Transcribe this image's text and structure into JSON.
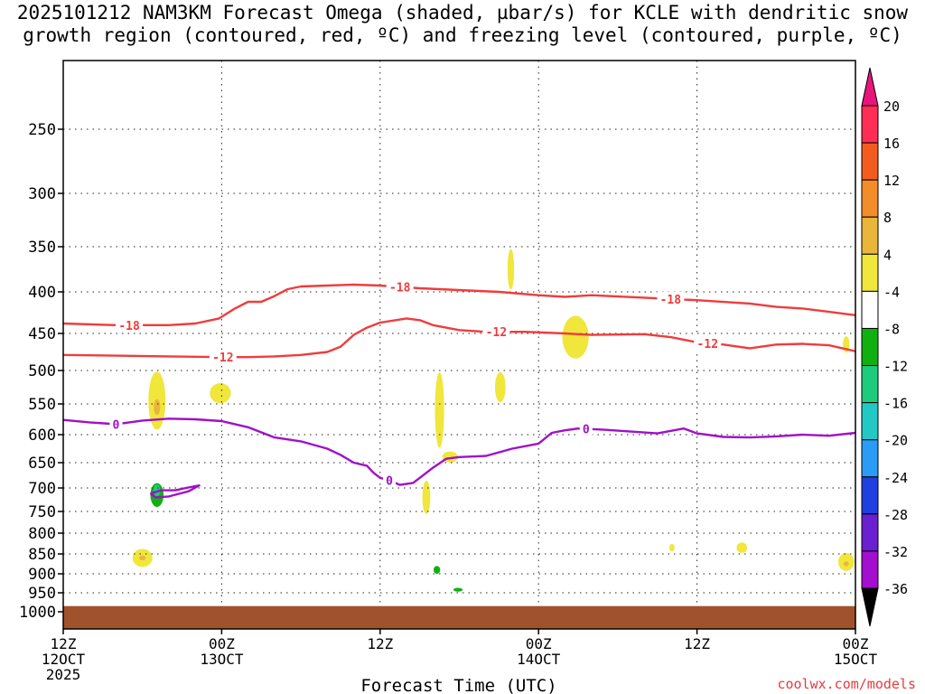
{
  "chart_data": {
    "type": "contour",
    "title_line1": "2025101212 NAM3KM Forecast Omega (shaded, µbar/s) for KCLE with dendritic snow",
    "title_line2": "growth region (contoured, red, ºC) and freezing level (contoured, purple, ºC)",
    "xlabel": "Forecast Time (UTC)",
    "watermark": "coolwx.com/models",
    "x_ticks": [
      {
        "hour": 0,
        "label": "12Z",
        "sub": "12OCT",
        "sub2": "2025"
      },
      {
        "hour": 12,
        "label": "00Z",
        "sub": "13OCT",
        "sub2": ""
      },
      {
        "hour": 24,
        "label": "12Z",
        "sub": "",
        "sub2": ""
      },
      {
        "hour": 36,
        "label": "00Z",
        "sub": "14OCT",
        "sub2": ""
      },
      {
        "hour": 48,
        "label": "12Z",
        "sub": "",
        "sub2": ""
      },
      {
        "hour": 60,
        "label": "00Z",
        "sub": "15OCT",
        "sub2": ""
      }
    ],
    "x_range_hours": [
      0,
      60
    ],
    "y_levels_hpa": [
      250,
      300,
      350,
      400,
      450,
      500,
      550,
      600,
      650,
      700,
      750,
      800,
      850,
      900,
      950,
      1000
    ],
    "y_range_hpa": [
      200,
      1025
    ],
    "ground_level_hpa": 985,
    "colorbar_levels": [
      "20",
      "16",
      "12",
      "8",
      "4",
      "-4",
      "-8",
      "-12",
      "-16",
      "-20",
      "-24",
      "-28",
      "-32",
      "-36"
    ],
    "colorbar_colors": [
      "#ff2e55",
      "#f25c1e",
      "#f28d29",
      "#e8b63a",
      "#f0e63c",
      "#ffffff",
      "#11b011",
      "#1dcc7a",
      "#22c9c4",
      "#2a9cf5",
      "#1f3fe0",
      "#6a1fd0",
      "#a30ecf",
      "#a8a8a8"
    ],
    "colorbar_top_color": "#e8157a",
    "colorbar_bottom_color": "#000000",
    "ground_color": "#a0522d",
    "dgz_color": "#f03c3c",
    "freezing_color": "#a010c8",
    "contours": [
      {
        "name": "dgz-18",
        "label": "-18",
        "label_hour": 12.5,
        "points": [
          [
            0,
            438
          ],
          [
            4,
            440
          ],
          [
            8,
            440
          ],
          [
            10,
            438
          ],
          [
            11.8,
            432
          ],
          [
            13,
            420
          ],
          [
            14,
            412
          ],
          [
            15,
            412
          ],
          [
            16,
            405
          ],
          [
            17,
            397
          ],
          [
            18,
            394
          ],
          [
            20,
            393
          ],
          [
            22,
            392
          ],
          [
            24,
            393
          ],
          [
            27,
            396
          ],
          [
            30,
            398
          ],
          [
            33,
            400
          ],
          [
            36,
            404
          ],
          [
            38,
            406
          ],
          [
            40,
            404
          ],
          [
            44,
            407
          ],
          [
            48,
            410
          ],
          [
            52,
            414
          ],
          [
            54,
            418
          ],
          [
            56,
            420
          ],
          [
            58,
            424
          ],
          [
            60,
            428
          ]
        ],
        "label_hours": [
          5,
          25.5,
          46
        ]
      },
      {
        "name": "dgz-12",
        "label": "-12",
        "label_hour": 12.5,
        "points": [
          [
            0,
            479
          ],
          [
            4,
            480
          ],
          [
            8,
            481
          ],
          [
            12,
            482
          ],
          [
            14,
            482
          ],
          [
            16,
            481
          ],
          [
            18,
            479
          ],
          [
            20,
            475
          ],
          [
            21,
            468
          ],
          [
            22,
            452
          ],
          [
            23,
            443
          ],
          [
            24,
            437
          ],
          [
            26,
            432
          ],
          [
            27,
            434
          ],
          [
            28,
            440
          ],
          [
            30,
            446
          ],
          [
            32,
            448
          ],
          [
            35,
            448
          ],
          [
            38,
            450
          ],
          [
            40,
            452
          ],
          [
            44,
            451
          ],
          [
            46,
            455
          ],
          [
            48,
            462
          ],
          [
            50,
            465
          ],
          [
            52,
            470
          ],
          [
            54,
            465
          ],
          [
            56,
            464
          ],
          [
            58,
            466
          ],
          [
            60,
            474
          ]
        ],
        "label_hours": [
          12.1,
          32.8,
          48.8
        ]
      },
      {
        "name": "freezing-0",
        "label": "0",
        "points": [
          [
            0,
            576
          ],
          [
            2,
            580
          ],
          [
            4,
            583
          ],
          [
            6,
            577
          ],
          [
            8,
            574
          ],
          [
            10,
            575
          ],
          [
            12,
            578
          ],
          [
            14,
            588
          ],
          [
            16,
            605
          ],
          [
            18,
            612
          ],
          [
            20,
            625
          ],
          [
            21,
            636
          ],
          [
            22,
            650
          ],
          [
            23,
            656
          ],
          [
            23.5,
            670
          ],
          [
            24,
            680
          ],
          [
            24.6,
            684
          ],
          [
            25.5,
            694
          ],
          [
            26.5,
            690
          ],
          [
            27,
            680
          ],
          [
            28,
            660
          ],
          [
            29,
            643
          ],
          [
            30,
            640
          ],
          [
            32,
            638
          ],
          [
            34,
            625
          ],
          [
            36,
            616
          ],
          [
            37,
            597
          ],
          [
            38,
            593
          ],
          [
            39,
            590
          ],
          [
            41,
            592
          ],
          [
            43,
            595
          ],
          [
            45,
            598
          ],
          [
            47,
            590
          ],
          [
            48,
            598
          ],
          [
            50,
            604
          ],
          [
            52,
            605
          ],
          [
            54,
            603
          ],
          [
            56,
            600
          ],
          [
            58,
            602
          ],
          [
            60,
            597
          ]
        ],
        "label_hours": [
          4,
          24.7,
          39.6
        ]
      },
      {
        "name": "freezing-0-island",
        "label": "",
        "points": [
          [
            6.6,
            712
          ],
          [
            7.4,
            705
          ],
          [
            8.5,
            705
          ],
          [
            9.3,
            700
          ],
          [
            10.3,
            695
          ],
          [
            9.5,
            707
          ],
          [
            8,
            718
          ],
          [
            7,
            720
          ],
          [
            6.6,
            712
          ]
        ],
        "label_hours": []
      }
    ],
    "omega_blobs": [
      {
        "name": "rise-1",
        "value": 4,
        "h": 7.1,
        "p": 545,
        "dh": 0.65,
        "dp": 90
      },
      {
        "name": "rise-1-core",
        "value": 8,
        "h": 7.1,
        "p": 555,
        "dh": 0.25,
        "dp": 25
      },
      {
        "name": "rise-2",
        "value": 4,
        "h": 11.9,
        "p": 534,
        "dh": 0.8,
        "dp": 30
      },
      {
        "name": "rise-3",
        "value": 4,
        "h": 6.0,
        "p": 860,
        "dh": 0.75,
        "dp": 45
      },
      {
        "name": "rise-3-core",
        "value": 8,
        "h": 6.0,
        "p": 860,
        "dh": 0.25,
        "dp": 12
      },
      {
        "name": "rise-4",
        "value": 4,
        "h": 28.5,
        "p": 560,
        "dh": 0.35,
        "dp": 120
      },
      {
        "name": "rise-5",
        "value": 4,
        "h": 27.5,
        "p": 720,
        "dh": 0.3,
        "dp": 70
      },
      {
        "name": "rise-6",
        "value": 4,
        "h": 29.3,
        "p": 640,
        "dh": 0.6,
        "dp": 20
      },
      {
        "name": "rise-7",
        "value": 4,
        "h": 33.1,
        "p": 525,
        "dh": 0.4,
        "dp": 45
      },
      {
        "name": "rise-8",
        "value": 4,
        "h": 33.9,
        "p": 375,
        "dh": 0.25,
        "dp": 45
      },
      {
        "name": "rise-9",
        "value": 4,
        "h": 38.8,
        "p": 455,
        "dh": 1.0,
        "dp": 55
      },
      {
        "name": "rise-10",
        "value": 4,
        "h": 46.1,
        "p": 835,
        "dh": 0.2,
        "dp": 18
      },
      {
        "name": "rise-11",
        "value": 4,
        "h": 51.4,
        "p": 835,
        "dh": 0.4,
        "dp": 25
      },
      {
        "name": "rise-12",
        "value": 4,
        "h": 59.3,
        "p": 465,
        "dh": 0.25,
        "dp": 22
      },
      {
        "name": "rise-13",
        "value": 4,
        "h": 59.3,
        "p": 870,
        "dh": 0.6,
        "dp": 45
      },
      {
        "name": "rise-13-core",
        "value": 8,
        "h": 59.3,
        "p": 875,
        "dh": 0.2,
        "dp": 12
      },
      {
        "name": "sink-1",
        "value": -4,
        "h": 7.1,
        "p": 715,
        "dh": 0.5,
        "dp": 50
      },
      {
        "name": "sink-1-core",
        "value": -8,
        "h": 7.1,
        "p": 705,
        "dh": 0.25,
        "dp": 25
      },
      {
        "name": "sink-2",
        "value": -4,
        "h": 28.3,
        "p": 890,
        "dh": 0.25,
        "dp": 20
      },
      {
        "name": "sink-3",
        "value": -4,
        "h": 29.9,
        "p": 942,
        "dh": 0.35,
        "dp": 10
      }
    ]
  }
}
